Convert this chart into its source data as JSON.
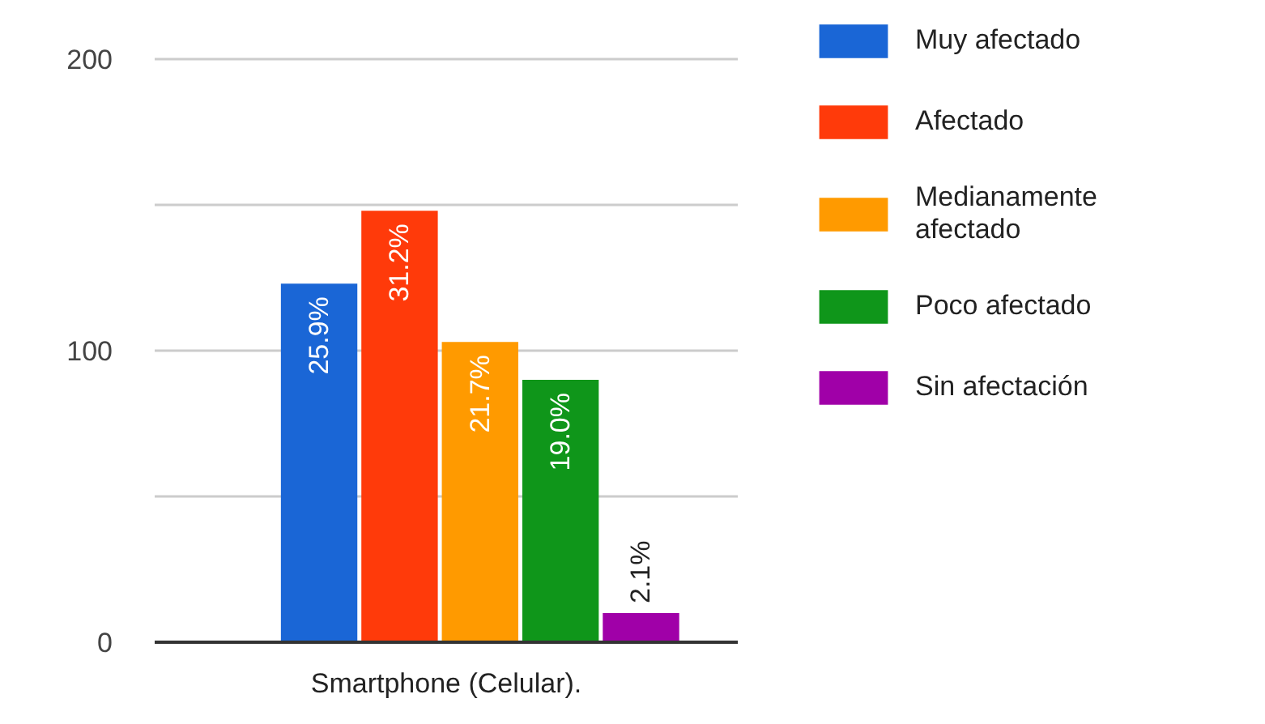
{
  "chart_data": {
    "type": "bar",
    "categories": [
      "Smartphone (Celular)."
    ],
    "series": [
      {
        "name": "Muy afectado",
        "color": "#1a66d6",
        "values": [
          123
        ]
      },
      {
        "name": "Afectado",
        "color": "#ff3a0a",
        "values": [
          148
        ]
      },
      {
        "name": "Medianamente afectado",
        "color": "#ff9a00",
        "values": [
          103
        ]
      },
      {
        "name": "Poco afectado",
        "color": "#0f961a",
        "values": [
          90
        ]
      },
      {
        "name": "Sin afectación",
        "color": "#a000a8",
        "values": [
          10
        ]
      }
    ],
    "annotations": [
      "25.9%",
      "31.2%",
      "21.7%",
      "19.0%",
      "2.1%"
    ],
    "ylim": [
      0,
      200
    ],
    "yticks": [
      0,
      {
        "value": 50,
        "label": null
      },
      100,
      {
        "value": 150,
        "label": null
      },
      200
    ],
    "grid": "y",
    "legend": "right"
  }
}
